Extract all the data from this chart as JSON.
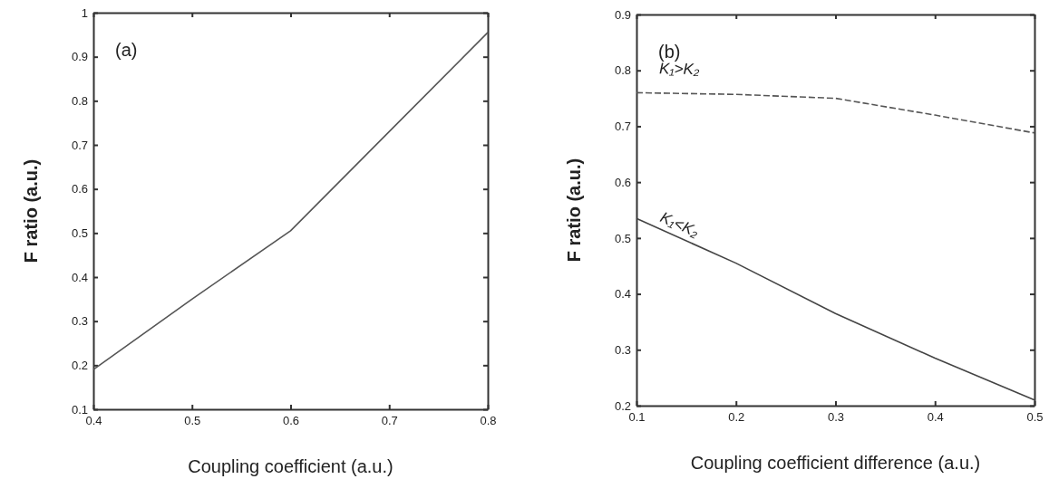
{
  "chart_data": [
    {
      "type": "line",
      "title": "(a)",
      "xlabel": "Coupling coefficient (a.u.)",
      "ylabel": "F ratio (a.u.)",
      "xlim": [
        0.4,
        0.8
      ],
      "xticks": [
        0.4,
        0.5,
        0.6,
        0.7,
        0.8
      ],
      "ylim": [
        0.1,
        1
      ],
      "yticks": [
        0.1,
        0.2,
        0.3,
        0.4,
        0.5,
        0.6,
        0.7,
        0.8,
        0.9,
        1
      ],
      "x": [
        0.4,
        0.5,
        0.6,
        0.7,
        0.8
      ],
      "grid": false,
      "series": [
        {
          "color": "#555555",
          "line_style": "solid",
          "values": [
            0.19,
            0.35,
            0.505,
            0.73,
            0.955
          ]
        }
      ]
    },
    {
      "type": "line",
      "title": "(b)",
      "xlabel": "Coupling coefficient difference (a.u.)",
      "ylabel": "F ratio (a.u.)",
      "xlim": [
        0.1,
        0.5
      ],
      "xticks": [
        0.1,
        0.2,
        0.3,
        0.4,
        0.5
      ],
      "ylim": [
        0.2,
        0.9
      ],
      "yticks": [
        0.2,
        0.3,
        0.4,
        0.5,
        0.6,
        0.7,
        0.8,
        0.9
      ],
      "x": [
        0.1,
        0.2,
        0.3,
        0.4,
        0.5
      ],
      "grid": false,
      "series": [
        {
          "name": "K₁>K₂",
          "color": "#555555",
          "line_style": "dashed",
          "values": [
            0.76,
            0.757,
            0.75,
            0.72,
            0.688
          ]
        },
        {
          "name": "K₁<K₂",
          "color": "#444444",
          "line_style": "solid",
          "values": [
            0.535,
            0.455,
            0.365,
            0.285,
            0.21
          ]
        }
      ]
    }
  ]
}
